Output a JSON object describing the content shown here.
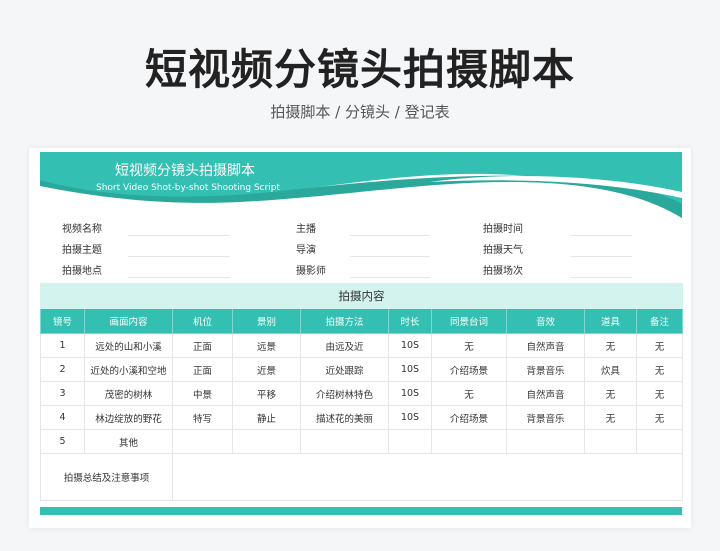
{
  "page": {
    "title": "短视频分镜头拍摄脚本",
    "subtitle": "拍摄脚本 / 分镜头 / 登记表"
  },
  "banner": {
    "title": "短视频分镜头拍摄脚本",
    "subtitle": "Short Video Shot-by-shot Shooting Script",
    "color": "#33bfb1"
  },
  "info": [
    [
      "视频名称",
      "主播",
      "拍摄时间"
    ],
    [
      "拍摄主题",
      "导演",
      "拍摄天气"
    ],
    [
      "拍摄地点",
      "摄影师",
      "拍摄场次"
    ]
  ],
  "table": {
    "section_title": "拍摄内容",
    "headers": [
      "镜号",
      "画面内容",
      "机位",
      "景别",
      "拍摄方法",
      "时长",
      "同景台词",
      "音效",
      "道具",
      "备注"
    ],
    "rows": [
      [
        "1",
        "远处的山和小溪",
        "正面",
        "远景",
        "由远及近",
        "10S",
        "无",
        "自然声音",
        "无",
        "无"
      ],
      [
        "2",
        "近处的小溪和空地",
        "正面",
        "近景",
        "近处跟踪",
        "10S",
        "介绍场景",
        "背景音乐",
        "炊具",
        "无"
      ],
      [
        "3",
        "茂密的树林",
        "中景",
        "平移",
        "介绍树林特色",
        "10S",
        "无",
        "自然声音",
        "无",
        "无"
      ],
      [
        "4",
        "林边绽放的野花",
        "特写",
        "静止",
        "描述花的美丽",
        "10S",
        "介绍场景",
        "背景音乐",
        "无",
        "无"
      ],
      [
        "5",
        "其他",
        "",
        "",
        "",
        "",
        "",
        "",
        "",
        ""
      ]
    ],
    "summary_label": "拍摄总结及注意事项"
  }
}
